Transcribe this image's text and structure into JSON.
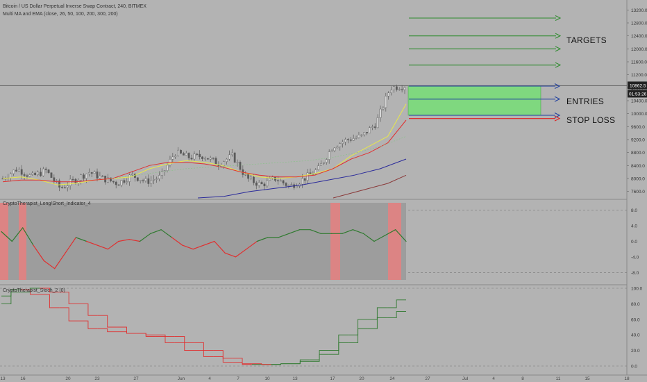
{
  "header": {
    "symbol_line": "Bitcoin / US Dollar Perpetual Inverse Swap Contract, 240, BITMEX",
    "ma_line": "Multi MA and EMA (close, 26, 50, 100, 200, 300, 200)"
  },
  "colors": {
    "background": "#b3b3b3",
    "candle": "#5a5a5a",
    "ema26": "#e8e84a",
    "ema50": "#e03030",
    "ma100": "#8fc08f",
    "ma200": "#2a2a9a",
    "ma300": "#8a3a3a",
    "target_arrow": "#2e8b2e",
    "entry_zone": "#7fd87f",
    "entry_arrow": "#1f3f9f",
    "stop_arrow": "#e02020",
    "osc_up": "#2f7a2f",
    "osc_down": "#e03030",
    "osc_band": "#e88080"
  },
  "annotations": {
    "targets": "TARGETS",
    "entries": "ENTRIES",
    "stop_loss": "STOP LOSS"
  },
  "chart_data": [
    {
      "type": "candlestick",
      "title": "Bitcoin / US Dollar Perpetual Inverse Swap Contract, 240, BITMEX",
      "ylim": [
        7400,
        13400
      ],
      "y_ticks": [
        "13200.0",
        "12800.0",
        "12400.0",
        "12000.0",
        "11600.0",
        "11200.0",
        "10800.0",
        "10400.0",
        "10000.0",
        "9600.0",
        "9200.0",
        "8800.0",
        "8400.0",
        "8000.0",
        "7600.0"
      ],
      "current_price": "10862.5",
      "countdown": "01:53:26",
      "x_ticks": [
        "13",
        "16",
        "20",
        "23",
        "27",
        "Jun",
        "4",
        "7",
        "10",
        "13",
        "17",
        "20",
        "24",
        "27",
        "Jul",
        "4",
        "8",
        "11",
        "15",
        "18"
      ],
      "close_path": [
        {
          "d": "May 13",
          "v": 8000
        },
        {
          "d": "May 14",
          "v": 8300
        },
        {
          "d": "May 15",
          "v": 8050
        },
        {
          "d": "May 16",
          "v": 8250
        },
        {
          "d": "May 17",
          "v": 7700
        },
        {
          "d": "May 18",
          "v": 7950
        },
        {
          "d": "May 19",
          "v": 8200
        },
        {
          "d": "May 20",
          "v": 8000
        },
        {
          "d": "May 21",
          "v": 7850
        },
        {
          "d": "May 22",
          "v": 8100
        },
        {
          "d": "May 23",
          "v": 7900
        },
        {
          "d": "May 25",
          "v": 8050
        },
        {
          "d": "May 27",
          "v": 8800
        },
        {
          "d": "May 29",
          "v": 8650
        },
        {
          "d": "May 31",
          "v": 8700
        },
        {
          "d": "Jun 1",
          "v": 8450
        },
        {
          "d": "Jun 3",
          "v": 8700
        },
        {
          "d": "Jun 4",
          "v": 8000
        },
        {
          "d": "Jun 6",
          "v": 7800
        },
        {
          "d": "Jun 8",
          "v": 8000
        },
        {
          "d": "Jun 10",
          "v": 7750
        },
        {
          "d": "Jun 12",
          "v": 8000
        },
        {
          "d": "Jun 14",
          "v": 8300
        },
        {
          "d": "Jun 16",
          "v": 9000
        },
        {
          "d": "Jun 18",
          "v": 9200
        },
        {
          "d": "Jun 20",
          "v": 9300
        },
        {
          "d": "Jun 22",
          "v": 9700
        },
        {
          "d": "Jun 23",
          "v": 10800
        },
        {
          "d": "Jun 24",
          "v": 10862.5
        }
      ],
      "moving_averages": [
        {
          "name": "26",
          "color": "#e8e84a",
          "values": [
            8000,
            8050,
            7950,
            7800,
            7850,
            7950,
            8000,
            8050,
            8300,
            8450,
            8550,
            8500,
            8400,
            8200,
            8050,
            8000,
            8050,
            8150,
            8300,
            8700,
            9000,
            9300,
            10300
          ]
        },
        {
          "name": "50",
          "color": "#e03030",
          "values": [
            7900,
            7950,
            7950,
            7900,
            7900,
            7950,
            8000,
            8200,
            8400,
            8500,
            8500,
            8450,
            8350,
            8200,
            8100,
            8050,
            8050,
            8100,
            8300,
            8600,
            8800,
            9100,
            9800
          ]
        },
        {
          "name": "100",
          "color": "#8fc08f",
          "values": [
            8000,
            8100,
            8200,
            8300,
            8350,
            8400,
            8450,
            8500,
            8550,
            8650,
            8800,
            9000,
            9300
          ]
        },
        {
          "name": "200",
          "color": "#2a2a9a",
          "values": [
            7400,
            7450,
            7600,
            7700,
            7800,
            7950,
            8100,
            8300,
            8600
          ]
        },
        {
          "name": "300",
          "color": "#8a3a3a",
          "values": [
            7400,
            7550,
            7700,
            7850,
            8100
          ]
        }
      ],
      "trade_plan": {
        "targets": [
          11500,
          12000,
          12400,
          12950
        ],
        "entry_zone": [
          9950,
          10850
        ],
        "entry_arrows": [
          10850,
          10450,
          9950
        ],
        "stop_loss": 9850
      }
    },
    {
      "type": "line",
      "title": "CryptoTherapist_Long/Short_Indicator_4",
      "ylim": [
        -10,
        10
      ],
      "y_ticks": [
        "8.0",
        "4.0",
        "0.0",
        "-4.0",
        "-8.0"
      ],
      "values": [
        2.5,
        0,
        3.5,
        -1,
        -5,
        -7,
        -3,
        1,
        0,
        -1,
        -2,
        0,
        0.5,
        0,
        2,
        3,
        1,
        -1,
        -2,
        -1,
        0,
        -3,
        -4,
        -2,
        0,
        1,
        1,
        2,
        3,
        3,
        2,
        2,
        2,
        3,
        2,
        0,
        1.5,
        3,
        0
      ]
    },
    {
      "type": "line",
      "title": "CryptoTherapist_Stoch_2 (0)",
      "ylim": [
        -5,
        105
      ],
      "y_ticks": [
        "100.0",
        "80.0",
        "60.0",
        "40.0",
        "20.0",
        "0.0"
      ],
      "series": [
        {
          "values": [
            80,
            95,
            100,
            95,
            80,
            65,
            50,
            42,
            38,
            30,
            20,
            12,
            5,
            2,
            2,
            3,
            8,
            20,
            40,
            60,
            75,
            85
          ]
        },
        {
          "values": [
            90,
            98,
            92,
            75,
            58,
            48,
            44,
            42,
            40,
            38,
            30,
            20,
            10,
            3,
            2,
            3,
            6,
            15,
            30,
            48,
            62,
            70
          ]
        }
      ]
    }
  ]
}
